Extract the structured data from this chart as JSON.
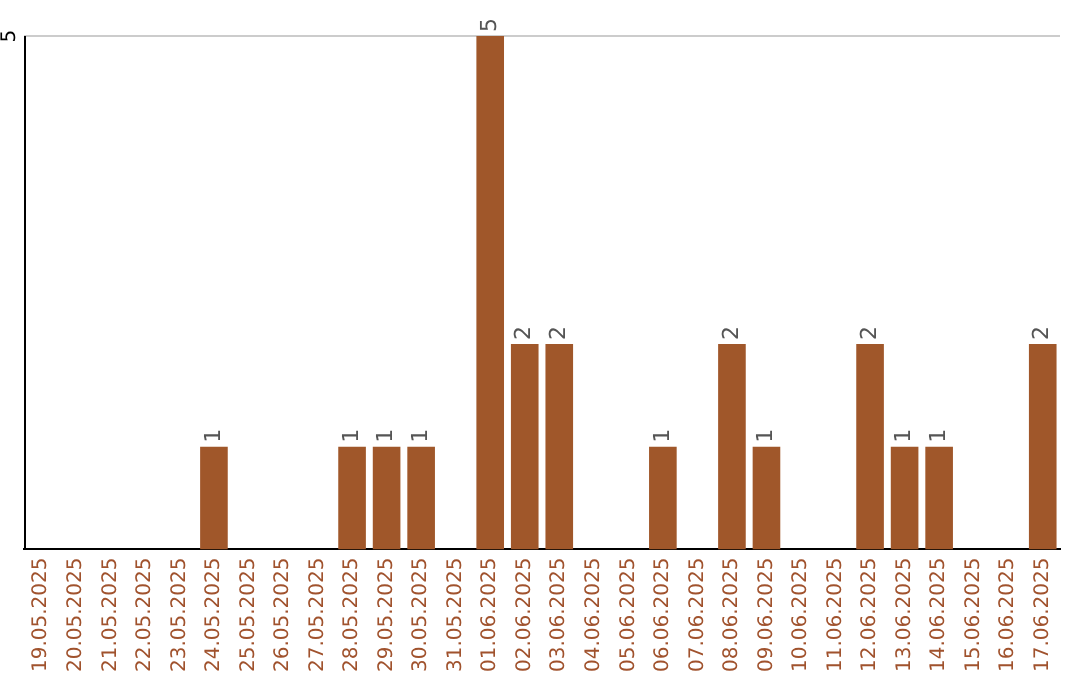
{
  "chart_data": {
    "type": "bar",
    "categories": [
      "19.05.2025",
      "20.05.2025",
      "21.05.2025",
      "22.05.2025",
      "23.05.2025",
      "24.05.2025",
      "25.05.2025",
      "26.05.2025",
      "27.05.2025",
      "28.05.2025",
      "29.05.2025",
      "30.05.2025",
      "31.05.2025",
      "01.06.2025",
      "02.06.2025",
      "03.06.2025",
      "04.06.2025",
      "05.06.2025",
      "06.06.2025",
      "07.06.2025",
      "08.06.2025",
      "09.06.2025",
      "10.06.2025",
      "11.06.2025",
      "12.06.2025",
      "13.06.2025",
      "14.06.2025",
      "15.06.2025",
      "16.06.2025",
      "17.06.2025"
    ],
    "values": [
      0,
      0,
      0,
      0,
      0,
      1,
      0,
      0,
      0,
      1,
      1,
      1,
      0,
      5,
      2,
      2,
      0,
      0,
      1,
      0,
      2,
      1,
      0,
      0,
      2,
      1,
      1,
      0,
      0,
      2
    ],
    "value_labels": [
      null,
      null,
      null,
      null,
      null,
      "1",
      null,
      null,
      null,
      "1",
      "1",
      "1",
      null,
      "5",
      "2",
      "2",
      null,
      null,
      "1",
      null,
      "2",
      "1",
      null,
      null,
      "2",
      "1",
      "1",
      null,
      null,
      "2"
    ],
    "color": "#a0572a",
    "ylim": [
      0,
      5
    ],
    "ref_lines": [
      {
        "axis": "y",
        "value": 5,
        "label": "5",
        "color": "#cccccc"
      }
    ],
    "legend": false
  }
}
